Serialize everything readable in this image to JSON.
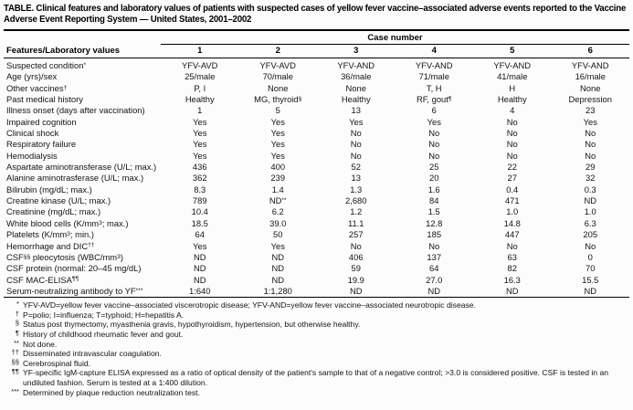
{
  "page": {
    "title": "TABLE. Clinical features and laboratory values of patients with suspected cases of yellow fever vaccine–associated adverse events reported to the Vaccine Adverse Event Reporting System — United States, 2001–2002"
  },
  "table": {
    "case_group_header": "Case number",
    "row_header": "Features/Laboratory values",
    "case_numbers": [
      "1",
      "2",
      "3",
      "4",
      "5",
      "6"
    ],
    "rows": [
      {
        "label": [
          {
            "t": "Suspected condition"
          },
          {
            "s": "*"
          }
        ],
        "values": [
          "YFV-AVD",
          "YFV-AVD",
          "YFV-AND",
          "YFV-AND",
          "YFV-AND",
          "YFV-AND"
        ]
      },
      {
        "label": "Age (yrs)/sex",
        "values": [
          "25/male",
          "70/male",
          "36/male",
          "71/male",
          "41/male",
          "16/male"
        ]
      },
      {
        "label": [
          {
            "t": "Other vaccines"
          },
          {
            "s": "†"
          }
        ],
        "values": [
          "P, I",
          "None",
          "None",
          "T, H",
          "H",
          "None"
        ]
      },
      {
        "label": "Past medical history",
        "values": [
          "Healthy",
          [
            {
              "t": "MG, thyroid"
            },
            {
              "s": "§"
            }
          ],
          "Healthy",
          [
            {
              "t": "RF, gout"
            },
            {
              "s": "¶"
            }
          ],
          "Healthy",
          "Depression"
        ]
      },
      {
        "label": "Illness onset (days after vaccination)",
        "values": [
          "1",
          "5",
          "13",
          "6",
          "4",
          "23"
        ]
      },
      {
        "label": "Impaired cognition",
        "values": [
          "Yes",
          "Yes",
          "Yes",
          "Yes",
          "No",
          "Yes"
        ]
      },
      {
        "label": "Clinical shock",
        "values": [
          "Yes",
          "Yes",
          "No",
          "No",
          "No",
          "No"
        ]
      },
      {
        "label": "Respiratory failure",
        "values": [
          "Yes",
          "Yes",
          "No",
          "No",
          "No",
          "No"
        ]
      },
      {
        "label": "Hemodialysis",
        "values": [
          "Yes",
          "Yes",
          "No",
          "No",
          "No",
          "No"
        ]
      },
      {
        "label": "Aspartate aminotransferase (U/L; max.)",
        "values": [
          "436",
          "400",
          "52",
          "25",
          "22",
          "29"
        ]
      },
      {
        "label": "Alanine aminotrasferase (U/L; max.)",
        "values": [
          "362",
          "239",
          "13",
          "20",
          "27",
          "32"
        ]
      },
      {
        "label": "Bilirubin (mg/dL; max.)",
        "values": [
          "8.3",
          "1.4",
          "1.3",
          "1.6",
          "0.4",
          "0.3"
        ]
      },
      {
        "label": "Creatine kinase (U/L; max.)",
        "values": [
          "789",
          [
            {
              "t": "ND"
            },
            {
              "s": "**"
            }
          ],
          "2,680",
          "84",
          "471",
          "ND"
        ]
      },
      {
        "label": "Creatinine (mg/dL; max.)",
        "values": [
          "10.4",
          "6.2",
          "1.2",
          "1.5",
          "1.0",
          "1.0"
        ]
      },
      {
        "label": [
          {
            "t": "White blood cells (K/mm"
          },
          {
            "s": "3"
          },
          {
            "t": "; max.)"
          }
        ],
        "values": [
          "18.5",
          "39.0",
          "11.1",
          "12.8",
          "14.8",
          "6.3"
        ]
      },
      {
        "label": [
          {
            "t": "Platelets (K/mm"
          },
          {
            "s": "3"
          },
          {
            "t": "; min.)"
          }
        ],
        "values": [
          "64",
          "50",
          "257",
          "185",
          "447",
          "205"
        ]
      },
      {
        "label": [
          {
            "t": "Hemorrhage and DIC"
          },
          {
            "s": "††"
          }
        ],
        "values": [
          "Yes",
          "Yes",
          "No",
          "No",
          "No",
          "No"
        ]
      },
      {
        "label": [
          {
            "t": "CSF"
          },
          {
            "s": "§§"
          },
          {
            "t": " pleocytosis (WBC/mm"
          },
          {
            "s": "3"
          },
          {
            "t": ")"
          }
        ],
        "values": [
          "ND",
          "ND",
          "406",
          "137",
          "63",
          "0"
        ]
      },
      {
        "label": "CSF protein (normal: 20–45 mg/dL)",
        "values": [
          "ND",
          "ND",
          "59",
          "64",
          "82",
          "70"
        ]
      },
      {
        "label": [
          {
            "t": "CSF MAC-ELISA"
          },
          {
            "s": "¶¶"
          }
        ],
        "values": [
          "ND",
          "ND",
          "19.9",
          "27.0",
          "16.3",
          "15.5"
        ]
      },
      {
        "label": [
          {
            "t": "Serum-neutralizing antibody to YF"
          },
          {
            "s": "***"
          }
        ],
        "values": [
          "1:640",
          "1:1,280",
          "ND",
          "ND",
          "ND",
          "ND"
        ]
      }
    ]
  },
  "footnotes": [
    {
      "marker": "*",
      "text": "YFV-AVD=yellow fever vaccine–associated viscerotropic disease; YFV-AND=yellow fever vaccine–associated neurotropic disease."
    },
    {
      "marker": "†",
      "text": "P=polio; I=influenza; T=typhoid; H=hepatitis A."
    },
    {
      "marker": "§",
      "text": "Status post thymectomy, myasthenia gravis, hypothyroidism, hypertension, but otherwise healthy."
    },
    {
      "marker": "¶",
      "text": "History of childhood rheumatic fever and gout."
    },
    {
      "marker": "**",
      "text": "Not done."
    },
    {
      "marker": "††",
      "text": "Disseminated intravascular coagulation."
    },
    {
      "marker": "§§",
      "text": "Cerebrospinal fluid."
    },
    {
      "marker": "¶¶",
      "text": "YF-specific IgM-capture ELISA expressed as a ratio of optical density of the patient's sample to that of a negative control; >3.0 is considered positive. CSF is tested in an undiluted fashion. Serum is tested at a 1:400 dilution."
    },
    {
      "marker": "***",
      "text": "Determined by plaque reduction neutralization test."
    }
  ],
  "colors": {
    "text": "#141414",
    "rule": "#000000",
    "background": "#fcfcfc"
  }
}
